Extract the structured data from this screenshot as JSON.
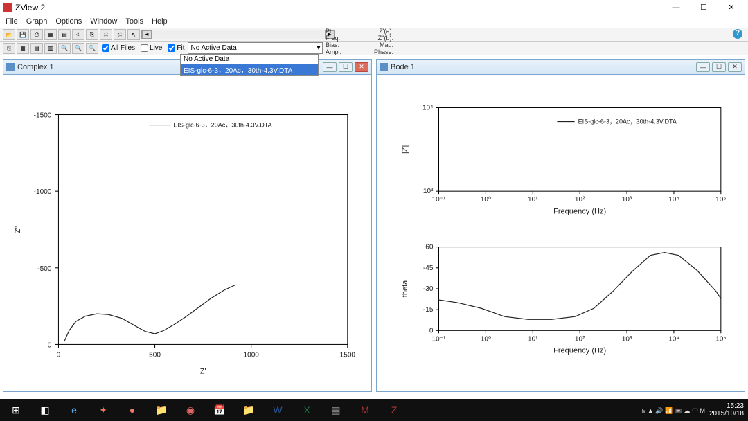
{
  "window": {
    "title": "ZView 2",
    "min": "—",
    "max": "☐",
    "close": "✕"
  },
  "menu": [
    "File",
    "Graph",
    "Options",
    "Window",
    "Tools",
    "Help"
  ],
  "statusLabels": {
    "pt": "Pt:",
    "freq": "Freq:",
    "bias": "Bias:",
    "ampl": "Ampl:",
    "za": "Z'(a):",
    "zb": "Z''(b):",
    "mag": "Mag:",
    "phase": "Phase:"
  },
  "toolbar2": {
    "allFiles": "All Files",
    "live": "Live",
    "fit": "Fit",
    "comboValue": "No Active Data",
    "comboArrow": "▾",
    "dropdown": [
      "No Active Data",
      "EIS-glc-6-3，20Ac，30th-4.3V.DTA"
    ]
  },
  "panel1": {
    "title": "Complex 1",
    "legend": "EIS-glc-6-3，20Ac，30th-4.3V.DTA",
    "xlabel": "Z'",
    "ylabel": "Z''",
    "xticks": [
      0,
      500,
      1000,
      1500
    ],
    "yticks": [
      {
        "v": 0,
        "l": "0"
      },
      {
        "v": 500,
        "l": "-500"
      },
      {
        "v": 1000,
        "l": "-1000"
      },
      {
        "v": 1500,
        "l": "-1500"
      }
    ],
    "curve": [
      [
        30,
        20
      ],
      [
        55,
        90
      ],
      [
        90,
        150
      ],
      [
        140,
        185
      ],
      [
        200,
        200
      ],
      [
        260,
        195
      ],
      [
        330,
        170
      ],
      [
        400,
        120
      ],
      [
        450,
        85
      ],
      [
        500,
        70
      ],
      [
        545,
        90
      ],
      [
        600,
        130
      ],
      [
        660,
        180
      ],
      [
        720,
        235
      ],
      [
        790,
        300
      ],
      [
        860,
        355
      ],
      [
        920,
        390
      ]
    ],
    "color": "#222",
    "bg": "#fff",
    "grid": "#000"
  },
  "panel2": {
    "title": "Bode 1",
    "legend": "EIS-glc-6-3，20Ac，30th-4.3V.DTA",
    "top": {
      "ylabel": "|Z|",
      "xlabel": "Frequency (Hz)",
      "xticks": [
        "10⁻¹",
        "10⁰",
        "10¹",
        "10²",
        "10³",
        "10⁴",
        "10⁵"
      ],
      "yticks": [
        "10³",
        "10⁴"
      ]
    },
    "bottom": {
      "ylabel": "theta",
      "xlabel": "Frequency (Hz)",
      "xticks": [
        "10⁻¹",
        "10⁰",
        "10¹",
        "10²",
        "10³",
        "10⁴",
        "10⁵"
      ],
      "yticks": [
        0,
        -15,
        -30,
        -45,
        -60
      ],
      "curve": [
        [
          0,
          22
        ],
        [
          0.4,
          20
        ],
        [
          0.9,
          16
        ],
        [
          1.4,
          10
        ],
        [
          1.9,
          8
        ],
        [
          2.4,
          8
        ],
        [
          2.9,
          10
        ],
        [
          3.3,
          16
        ],
        [
          3.7,
          28
        ],
        [
          4.1,
          42
        ],
        [
          4.5,
          54
        ],
        [
          4.8,
          56
        ],
        [
          5.1,
          54
        ],
        [
          5.5,
          43
        ],
        [
          5.9,
          28
        ],
        [
          6.0,
          23
        ]
      ]
    },
    "color": "#222"
  },
  "taskbar": {
    "items": [
      "⊞",
      "◧",
      "e",
      "✦",
      "●",
      "📁",
      "◉",
      "📅",
      "📁",
      "W",
      "X",
      "▦",
      "M",
      "Z"
    ],
    "colors": [
      "#fff",
      "#fff",
      "#5bb0ee",
      "#e76",
      "#e76",
      "#e8c060",
      "#d66",
      "#eee",
      "#ccc",
      "#2a5699",
      "#217346",
      "#888",
      "#a33",
      "#a33"
    ],
    "tray": "ଛ ▲ 🔊 📶 📼 ☁ 中 M",
    "time": "15:23",
    "date": "2015/10/18"
  }
}
